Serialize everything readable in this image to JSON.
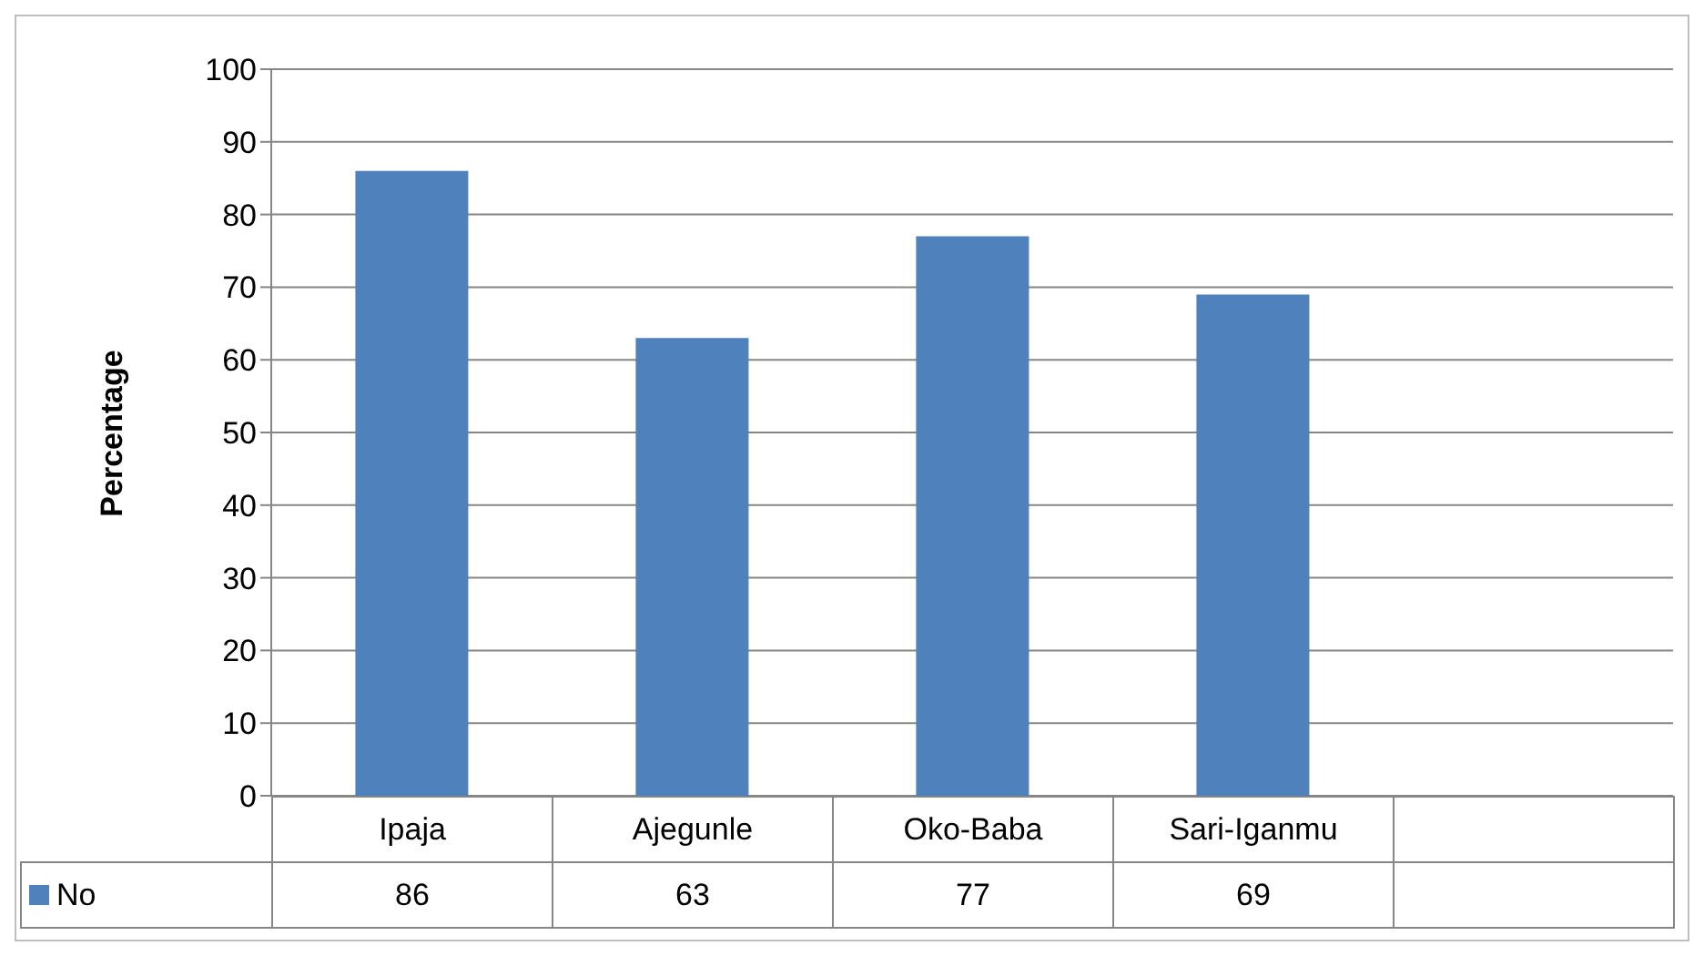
{
  "chart_data": {
    "type": "bar",
    "ylabel": "Percentage",
    "categories": [
      "Ipaja",
      "Ajegunle",
      "Oko-Baba",
      "Sari-Iganmu",
      null
    ],
    "series": [
      {
        "name": "No",
        "color": "#4f81bd",
        "values": [
          86,
          63,
          77,
          69,
          null
        ]
      }
    ],
    "ylim": [
      0,
      100
    ],
    "yticks": [
      0,
      10,
      20,
      30,
      40,
      50,
      60,
      70,
      80,
      90,
      100
    ],
    "grid": "y",
    "legend": "bottom",
    "data_labels": true
  }
}
